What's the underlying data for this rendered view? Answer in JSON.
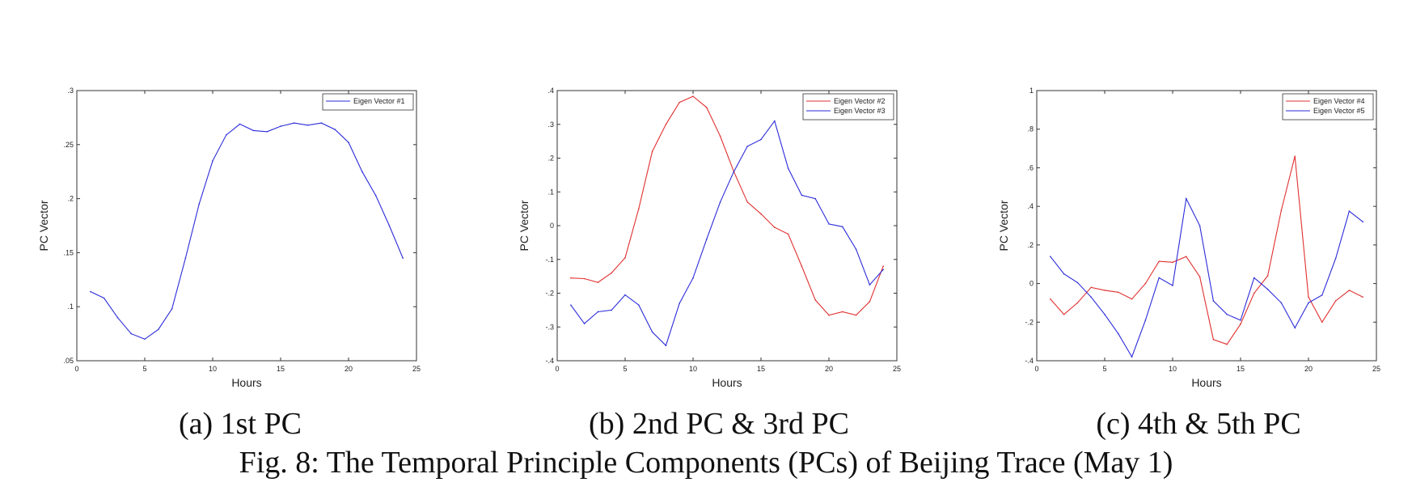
{
  "captions": {
    "a": "(a) 1st PC",
    "b": "(b) 2nd PC & 3rd PC",
    "c": "(c) 4th & 5th PC",
    "figure": "Fig. 8: The Temporal Principle Components (PCs) of Beijing Trace (May 1)"
  },
  "chart_data": [
    {
      "type": "line",
      "xlabel": "Hours",
      "ylabel": "PC Vector",
      "xlim": [
        0,
        25
      ],
      "ylim": [
        0.05,
        0.3
      ],
      "xticks": [
        0,
        5,
        10,
        15,
        20,
        25
      ],
      "yticks": [
        0.05,
        0.1,
        0.15,
        0.2,
        0.25,
        0.3
      ],
      "legend_position": "top-right",
      "grid": false,
      "x": [
        1,
        2,
        3,
        4,
        5,
        6,
        7,
        8,
        9,
        10,
        11,
        12,
        13,
        14,
        15,
        16,
        17,
        18,
        19,
        20,
        21,
        22,
        23,
        24
      ],
      "series": [
        {
          "name": "Eigen Vector #1",
          "color": "#2b2bd9",
          "values": [
            0.114,
            0.108,
            0.09,
            0.075,
            0.07,
            0.079,
            0.098,
            0.145,
            0.195,
            0.235,
            0.259,
            0.269,
            0.263,
            0.262,
            0.267,
            0.27,
            0.268,
            0.27,
            0.264,
            0.252,
            0.225,
            0.203,
            0.175,
            0.145
          ]
        }
      ]
    },
    {
      "type": "line",
      "xlabel": "Hours",
      "ylabel": "PC Vector",
      "xlim": [
        0,
        25
      ],
      "ylim": [
        -0.4,
        0.4
      ],
      "xticks": [
        0,
        5,
        10,
        15,
        20,
        25
      ],
      "yticks": [
        -0.4,
        -0.3,
        -0.2,
        -0.1,
        0,
        0.1,
        0.2,
        0.3,
        0.4
      ],
      "legend_position": "top-right",
      "grid": false,
      "x": [
        1,
        2,
        3,
        4,
        5,
        6,
        7,
        8,
        9,
        10,
        11,
        12,
        13,
        14,
        15,
        16,
        17,
        18,
        19,
        20,
        21,
        22,
        23,
        24
      ],
      "series": [
        {
          "name": "Eigen Vector #2",
          "color": "#e03030",
          "values": [
            -0.155,
            -0.157,
            -0.168,
            -0.14,
            -0.095,
            0.05,
            0.22,
            0.3,
            0.365,
            0.383,
            0.35,
            0.265,
            0.16,
            0.07,
            0.035,
            -0.005,
            -0.025,
            -0.12,
            -0.22,
            -0.265,
            -0.255,
            -0.265,
            -0.225,
            -0.12
          ]
        },
        {
          "name": "Eigen Vector #3",
          "color": "#2b2bd9",
          "values": [
            -0.235,
            -0.29,
            -0.255,
            -0.25,
            -0.205,
            -0.235,
            -0.315,
            -0.355,
            -0.23,
            -0.155,
            -0.04,
            0.07,
            0.16,
            0.235,
            0.255,
            0.31,
            0.17,
            0.09,
            0.08,
            0.005,
            -0.003,
            -0.07,
            -0.175,
            -0.13
          ]
        }
      ]
    },
    {
      "type": "line",
      "xlabel": "Hours",
      "ylabel": "PC Vector",
      "xlim": [
        0,
        25
      ],
      "ylim": [
        -0.4,
        1
      ],
      "xticks": [
        0,
        5,
        10,
        15,
        20,
        25
      ],
      "yticks": [
        -0.4,
        -0.2,
        0,
        0.2,
        0.4,
        0.6,
        0.8,
        1
      ],
      "legend_position": "top-right",
      "grid": false,
      "x": [
        1,
        2,
        3,
        4,
        5,
        6,
        7,
        8,
        9,
        10,
        11,
        12,
        13,
        14,
        15,
        16,
        17,
        18,
        19,
        20,
        21,
        22,
        23,
        24
      ],
      "series": [
        {
          "name": "Eigen Vector #4",
          "color": "#e03030",
          "values": [
            -0.08,
            -0.16,
            -0.1,
            -0.02,
            -0.035,
            -0.045,
            -0.08,
            0.0,
            0.115,
            0.11,
            0.14,
            0.035,
            -0.29,
            -0.315,
            -0.21,
            -0.05,
            0.04,
            0.38,
            0.66,
            -0.07,
            -0.2,
            -0.09,
            -0.035,
            -0.07
          ]
        },
        {
          "name": "Eigen Vector #5",
          "color": "#2b2bd9",
          "values": [
            0.14,
            0.05,
            0.005,
            -0.07,
            -0.16,
            -0.26,
            -0.38,
            -0.19,
            0.03,
            -0.01,
            0.44,
            0.3,
            -0.09,
            -0.16,
            -0.19,
            0.03,
            -0.03,
            -0.1,
            -0.23,
            -0.1,
            -0.06,
            0.13,
            0.375,
            0.32
          ]
        }
      ]
    }
  ]
}
